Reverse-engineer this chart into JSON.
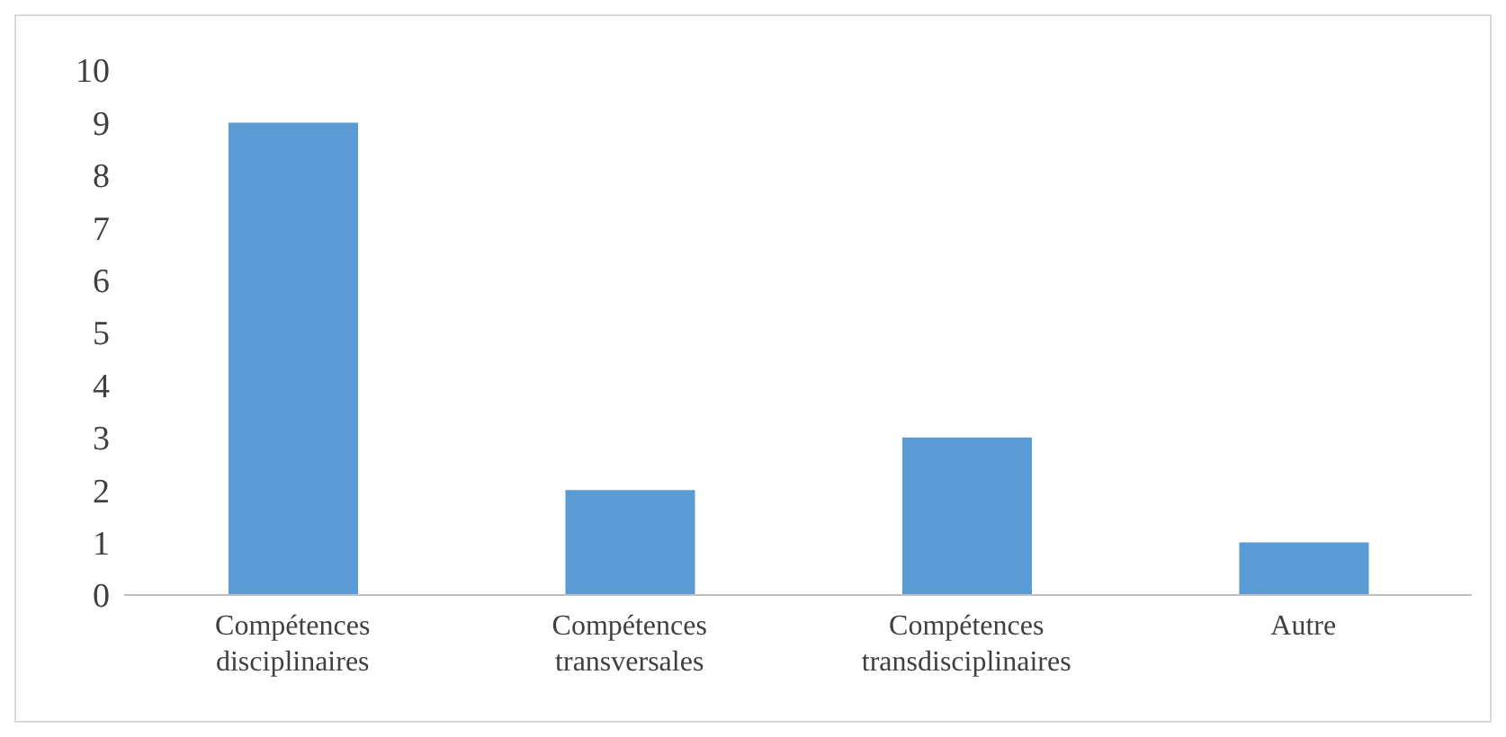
{
  "chart_data": {
    "type": "bar",
    "categories": [
      "Compétences disciplinaires",
      "Compétences transversales",
      "Compétences transdisciplinaires",
      "Autre"
    ],
    "values": [
      9,
      2,
      3,
      1
    ],
    "color": "#5b9bd5",
    "ylim": [
      0,
      10
    ],
    "yticks": [
      0,
      1,
      2,
      3,
      4,
      5,
      6,
      7,
      8,
      9,
      10
    ],
    "grid": false
  }
}
